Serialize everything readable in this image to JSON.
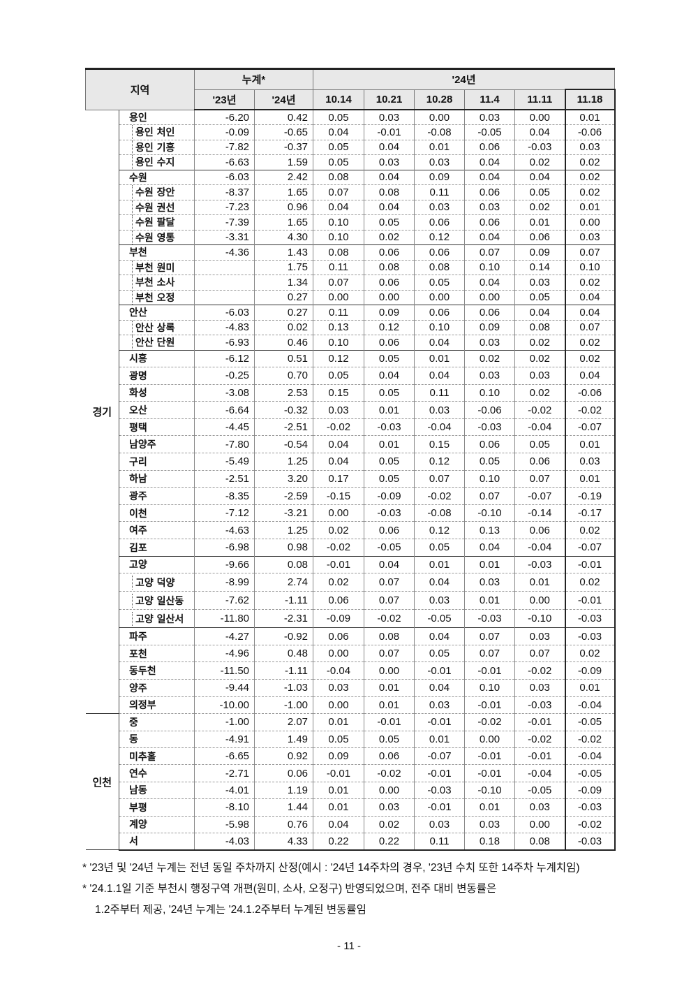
{
  "header": {
    "region": "지역",
    "cumulative": "누계*",
    "year24": "'24년",
    "cum_cols": [
      "'23년",
      "'24년"
    ],
    "weeks": [
      "10.14",
      "10.21",
      "10.28",
      "11.4",
      "11.11",
      "11.18"
    ]
  },
  "groups": [
    {
      "label": "경기",
      "rows": [
        [
          "용인",
          false,
          "-6.20",
          "0.42",
          "0.05",
          "0.03",
          "0.00",
          "0.03",
          "0.00",
          "0.01"
        ],
        [
          "용인 처인",
          true,
          "-0.09",
          "-0.65",
          "0.04",
          "-0.01",
          "-0.08",
          "-0.05",
          "0.04",
          "-0.06"
        ],
        [
          "용인 기흥",
          true,
          "-7.82",
          "-0.37",
          "0.05",
          "0.04",
          "0.01",
          "0.06",
          "-0.03",
          "0.03"
        ],
        [
          "용인 수지",
          true,
          "-6.63",
          "1.59",
          "0.05",
          "0.03",
          "0.03",
          "0.04",
          "0.02",
          "0.02"
        ],
        [
          "수원",
          false,
          "-6.03",
          "2.42",
          "0.08",
          "0.04",
          "0.09",
          "0.04",
          "0.04",
          "0.02"
        ],
        [
          "수원 장안",
          true,
          "-8.37",
          "1.65",
          "0.07",
          "0.08",
          "0.11",
          "0.06",
          "0.05",
          "0.02"
        ],
        [
          "수원 권선",
          true,
          "-7.23",
          "0.96",
          "0.04",
          "0.04",
          "0.03",
          "0.03",
          "0.02",
          "0.01"
        ],
        [
          "수원 팔달",
          true,
          "-7.39",
          "1.65",
          "0.10",
          "0.05",
          "0.06",
          "0.06",
          "0.01",
          "0.00"
        ],
        [
          "수원 영통",
          true,
          "-3.31",
          "4.30",
          "0.10",
          "0.02",
          "0.12",
          "0.04",
          "0.06",
          "0.03"
        ],
        [
          "부천",
          false,
          "-4.36",
          "1.43",
          "0.08",
          "0.06",
          "0.06",
          "0.07",
          "0.09",
          "0.07"
        ],
        [
          "부천 원미",
          true,
          "",
          "1.75",
          "0.11",
          "0.08",
          "0.08",
          "0.10",
          "0.14",
          "0.10"
        ],
        [
          "부천 소사",
          true,
          "",
          "1.34",
          "0.07",
          "0.06",
          "0.05",
          "0.04",
          "0.03",
          "0.02"
        ],
        [
          "부천 오정",
          true,
          "",
          "0.27",
          "0.00",
          "0.00",
          "0.00",
          "0.00",
          "0.05",
          "0.04"
        ],
        [
          "안산",
          false,
          "-6.03",
          "0.27",
          "0.11",
          "0.09",
          "0.06",
          "0.06",
          "0.04",
          "0.04"
        ],
        [
          "안산 상록",
          true,
          "-4.83",
          "0.02",
          "0.13",
          "0.12",
          "0.10",
          "0.09",
          "0.08",
          "0.07"
        ],
        [
          "안산 단원",
          true,
          "-6.93",
          "0.46",
          "0.10",
          "0.06",
          "0.04",
          "0.03",
          "0.02",
          "0.02"
        ],
        [
          "시흥",
          false,
          "-6.12",
          "0.51",
          "0.12",
          "0.05",
          "0.01",
          "0.02",
          "0.02",
          "0.02"
        ],
        [
          "광명",
          false,
          "-0.25",
          "0.70",
          "0.05",
          "0.04",
          "0.04",
          "0.03",
          "0.03",
          "0.04"
        ],
        [
          "화성",
          false,
          "-3.08",
          "2.53",
          "0.15",
          "0.05",
          "0.11",
          "0.10",
          "0.02",
          "-0.06"
        ],
        [
          "오산",
          false,
          "-6.64",
          "-0.32",
          "0.03",
          "0.01",
          "0.03",
          "-0.06",
          "-0.02",
          "-0.02"
        ],
        [
          "평택",
          false,
          "-4.45",
          "-2.51",
          "-0.02",
          "-0.03",
          "-0.04",
          "-0.03",
          "-0.04",
          "-0.07"
        ],
        [
          "남양주",
          false,
          "-7.80",
          "-0.54",
          "0.04",
          "0.01",
          "0.15",
          "0.06",
          "0.05",
          "0.01"
        ],
        [
          "구리",
          false,
          "-5.49",
          "1.25",
          "0.04",
          "0.05",
          "0.12",
          "0.05",
          "0.06",
          "0.03"
        ],
        [
          "하남",
          false,
          "-2.51",
          "3.20",
          "0.17",
          "0.05",
          "0.07",
          "0.10",
          "0.07",
          "0.01"
        ],
        [
          "광주",
          false,
          "-8.35",
          "-2.59",
          "-0.15",
          "-0.09",
          "-0.02",
          "0.07",
          "-0.07",
          "-0.19"
        ],
        [
          "이천",
          false,
          "-7.12",
          "-3.21",
          "0.00",
          "-0.03",
          "-0.08",
          "-0.10",
          "-0.14",
          "-0.17"
        ],
        [
          "여주",
          false,
          "-4.63",
          "1.25",
          "0.02",
          "0.06",
          "0.12",
          "0.13",
          "0.06",
          "0.02"
        ],
        [
          "김포",
          false,
          "-6.98",
          "0.98",
          "-0.02",
          "-0.05",
          "0.05",
          "0.04",
          "-0.04",
          "-0.07"
        ],
        [
          "고양",
          false,
          "-9.66",
          "0.08",
          "-0.01",
          "0.04",
          "0.01",
          "0.01",
          "-0.03",
          "-0.01"
        ],
        [
          "고양 덕양",
          true,
          "-8.99",
          "2.74",
          "0.02",
          "0.07",
          "0.04",
          "0.03",
          "0.01",
          "0.02"
        ],
        [
          "고양 일산동",
          true,
          "-7.62",
          "-1.11",
          "0.06",
          "0.07",
          "0.03",
          "0.01",
          "0.00",
          "-0.01"
        ],
        [
          "고양 일산서",
          true,
          "-11.80",
          "-2.31",
          "-0.09",
          "-0.02",
          "-0.05",
          "-0.03",
          "-0.10",
          "-0.03"
        ],
        [
          "파주",
          false,
          "-4.27",
          "-0.92",
          "0.06",
          "0.08",
          "0.04",
          "0.07",
          "0.03",
          "-0.03"
        ],
        [
          "포천",
          false,
          "-4.96",
          "0.48",
          "0.00",
          "0.07",
          "0.05",
          "0.07",
          "0.07",
          "0.02"
        ],
        [
          "동두천",
          false,
          "-11.50",
          "-1.11",
          "-0.04",
          "0.00",
          "-0.01",
          "-0.01",
          "-0.02",
          "-0.09"
        ],
        [
          "양주",
          false,
          "-9.44",
          "-1.03",
          "0.03",
          "0.01",
          "0.04",
          "0.10",
          "0.03",
          "0.01"
        ],
        [
          "의정부",
          false,
          "-10.00",
          "-1.00",
          "0.00",
          "0.01",
          "0.03",
          "-0.01",
          "-0.03",
          "-0.04"
        ]
      ]
    },
    {
      "label": "인천",
      "rows": [
        [
          "중",
          false,
          "-1.00",
          "2.07",
          "0.01",
          "-0.01",
          "-0.01",
          "-0.02",
          "-0.01",
          "-0.05"
        ],
        [
          "동",
          false,
          "-4.91",
          "1.49",
          "0.05",
          "0.05",
          "0.01",
          "0.00",
          "-0.02",
          "-0.02"
        ],
        [
          "미추홀",
          false,
          "-6.65",
          "0.92",
          "0.09",
          "0.06",
          "-0.07",
          "-0.01",
          "-0.01",
          "-0.04"
        ],
        [
          "연수",
          false,
          "-2.71",
          "0.06",
          "-0.01",
          "-0.02",
          "-0.01",
          "-0.01",
          "-0.04",
          "-0.05"
        ],
        [
          "남동",
          false,
          "-4.01",
          "1.19",
          "0.01",
          "0.00",
          "-0.03",
          "-0.10",
          "-0.05",
          "-0.09"
        ],
        [
          "부평",
          false,
          "-8.10",
          "1.44",
          "0.01",
          "0.03",
          "-0.01",
          "0.01",
          "0.03",
          "-0.03"
        ],
        [
          "계양",
          false,
          "-5.98",
          "0.76",
          "0.04",
          "0.02",
          "0.03",
          "0.03",
          "0.00",
          "-0.02"
        ],
        [
          "서",
          false,
          "-4.03",
          "4.33",
          "0.22",
          "0.22",
          "0.11",
          "0.18",
          "0.08",
          "-0.03"
        ]
      ]
    }
  ],
  "notes": [
    "* '23년 및 '24년 누계는 전년 동일 주차까지 산정(예시 : '24년 14주차의 경우, '23년 수치 또한 14주차 누계치임)",
    "* '24.1.1일 기준 부천시 행정구역 개편(원미, 소사, 오정구) 반영되었으며, 전주 대비 변동률은",
    "1.2주부터 제공, '24년 누계는 '24.1.2주부터 누계된 변동률임"
  ],
  "page_number": "- 11 -"
}
